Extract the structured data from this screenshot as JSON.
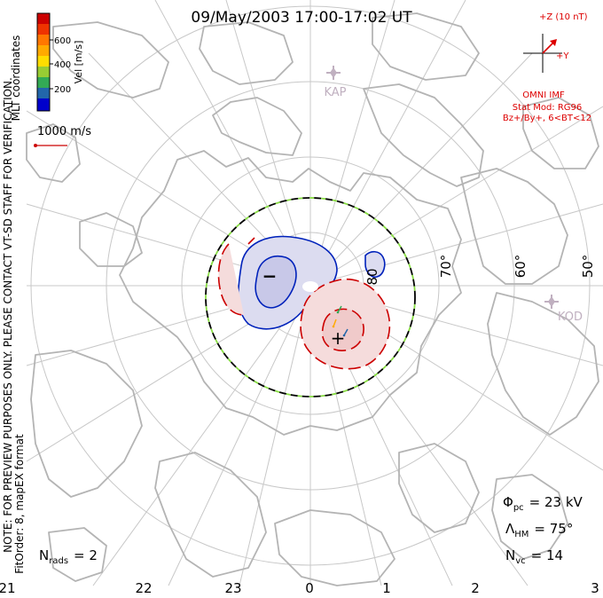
{
  "header": {
    "title": "09/May/2003 17:00-17:02 UT",
    "coord_system": "MLT coordinates"
  },
  "colorbar": {
    "label": "Vel [m/s]",
    "ticks": [
      "600",
      "400",
      "200"
    ],
    "colors": [
      "#cc0000",
      "#ee3300",
      "#ff7700",
      "#ffaa00",
      "#ffdd00",
      "#99cc33",
      "#33aa55",
      "#2266aa",
      "#0000cc"
    ]
  },
  "velocity_scale": {
    "label": "1000 m/s",
    "color": "#cc0000"
  },
  "imf": {
    "z_label": "+Z (10 nT)",
    "y_label": "+Y",
    "source": "OMNI IMF",
    "model_line1": "Stat Mod: RG96",
    "model_line2": "Bz+/By+, 6<BT<12",
    "color": "#dd0000"
  },
  "stations": [
    "KAP",
    "KOD"
  ],
  "latitude_labels": [
    "80",
    "70°",
    "60°",
    "50°"
  ],
  "mlt_labels": [
    "21",
    "22",
    "23",
    "0",
    "1",
    "2",
    "3"
  ],
  "cells": {
    "neg_symbol": "−",
    "pos_symbol": "+"
  },
  "notice_lines": [
    "NOTE: FOR PREVIEW PURPOSES ONLY. PLEASE CONTACT VT-SD STAFF FOR VERIFICATION.",
    "FitOrder: 8, mapEX format"
  ],
  "stats": {
    "phi_sym": "Φ",
    "phi_sub": "pc",
    "phi_val": "= 23 kV",
    "lam_sym": "Λ",
    "lam_sub": "HM",
    "lam_val": "= 75°",
    "nvc_sym": "N",
    "nvc_sub": "vc",
    "nvc_val": "= 14",
    "nrads_sym": "N",
    "nrads_sub": "rads",
    "nrads_val": "= 2"
  },
  "colors": {
    "grid": "#c8c8c8",
    "coast": "#b4b4b4",
    "negative_contour": "#0022bb",
    "positive_contour": "#cc0000",
    "negative_fill": "#dcdcf0",
    "positive_fill": "#f5dcdc",
    "hmb_green": "#88dd44"
  }
}
